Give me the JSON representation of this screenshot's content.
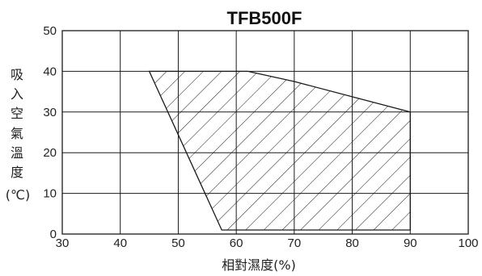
{
  "chart_data": {
    "type": "area",
    "title": "TFB500F",
    "xlabel": "相對濕度(%)",
    "ylabel_lines": [
      "吸",
      "入",
      "空",
      "氣",
      "溫",
      "度",
      "(℃)"
    ],
    "xlim": [
      30,
      100
    ],
    "ylim": [
      0,
      50
    ],
    "xticks": [
      30,
      40,
      50,
      60,
      70,
      80,
      90,
      100
    ],
    "yticks": [
      0,
      10,
      20,
      30,
      40,
      50
    ],
    "grid": true,
    "operating_region": {
      "x": [
        45,
        62,
        70,
        90,
        90,
        57.5,
        45
      ],
      "y": [
        40,
        40,
        37.5,
        30,
        1,
        1,
        40
      ]
    },
    "colors": {
      "line": "#1a1a1a",
      "hatch": "#1a1a1a",
      "grid": "#1a1a1a"
    }
  }
}
